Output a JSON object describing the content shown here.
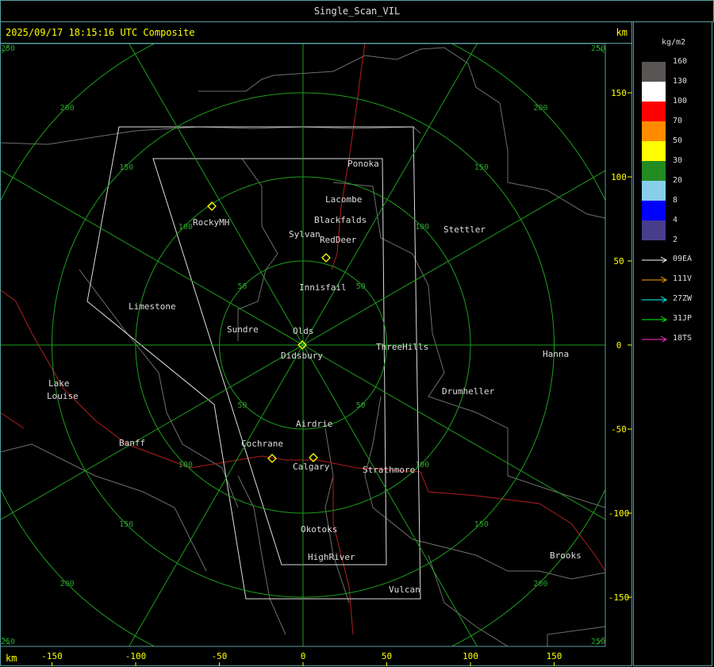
{
  "window": {
    "title": "Single_Scan_VIL"
  },
  "header": {
    "timestamp": "2025/09/17 18:15:16 UTC Composite",
    "unit": "km"
  },
  "axes": {
    "unit": "km",
    "x_ticks": [
      "-150",
      "-100",
      "-50",
      "0",
      "50",
      "100",
      "150"
    ],
    "y_ticks": [
      "150",
      "100",
      "50",
      "0",
      "-50",
      "-100",
      "-150"
    ]
  },
  "rings": [
    "50",
    "100",
    "150",
    "200",
    "250"
  ],
  "legend": {
    "unit": "kg/m2",
    "scale": [
      {
        "label": "160",
        "color": "#5a5555"
      },
      {
        "label": "130",
        "color": "#ffffff"
      },
      {
        "label": "100",
        "color": "#ff0000"
      },
      {
        "label": "70",
        "color": "#ff8c00"
      },
      {
        "label": "50",
        "color": "#ffff00"
      },
      {
        "label": "30",
        "color": "#228b22"
      },
      {
        "label": "20",
        "color": "#87ceeb"
      },
      {
        "label": "8",
        "color": "#0000ff"
      },
      {
        "label": "4",
        "color": "#483d8b"
      },
      {
        "label": "2",
        "color": ""
      }
    ],
    "radars": [
      {
        "label": "09EA",
        "color": "#ffffff"
      },
      {
        "label": "111V",
        "color": "#ffa500"
      },
      {
        "label": "27ZW",
        "color": "#00ffff"
      },
      {
        "label": "31JP",
        "color": "#00ff00"
      },
      {
        "label": "18TS",
        "color": "#ff33cc"
      }
    ]
  },
  "cities": [
    "Ponoka",
    "Lacombe",
    "Blackfalds",
    "Sylvan",
    "RedDeer",
    "RockyMH",
    "Stettler",
    "Innisfail",
    "Limestone",
    "Sundre",
    "Olds",
    "Didsbury",
    "ThreeHills",
    "Hanna",
    "Lake",
    "Louise",
    "Drumheller",
    "Airdrie",
    "Banff",
    "Cochrane",
    "Calgary",
    "Strathmore",
    "Okotoks",
    "HighRiver",
    "Brooks",
    "Vulcan"
  ]
}
